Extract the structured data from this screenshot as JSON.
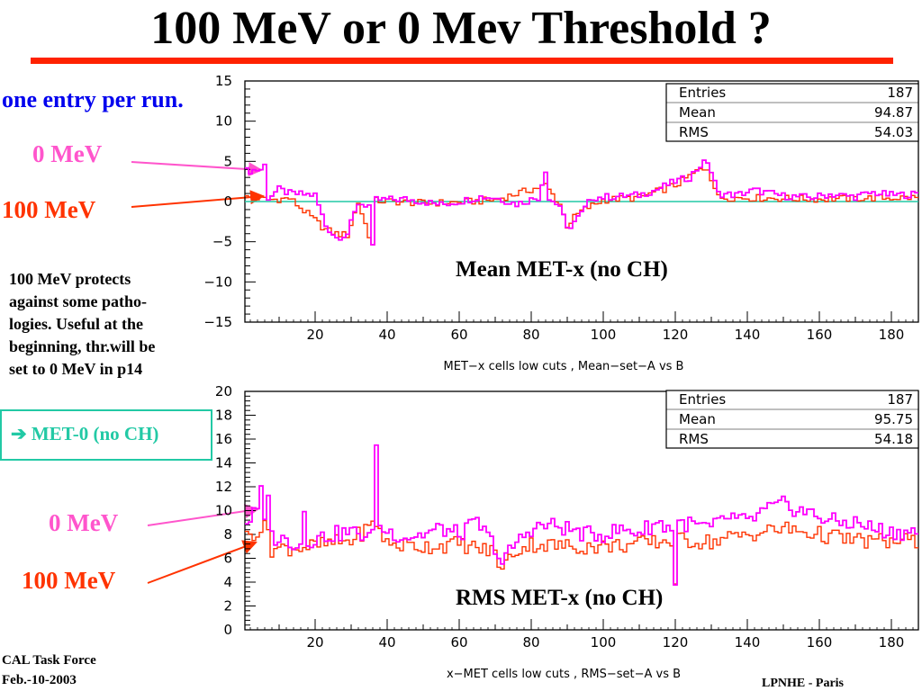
{
  "title": "100 MeV or 0 Mev Threshold ?",
  "annotations": {
    "one_entry": "one entry per run.",
    "label_0mev_top": "0 MeV",
    "label_100mev_top": "100 MeV",
    "label_0mev_bottom": "0 MeV",
    "label_100mev_bottom": "100 MeV",
    "note_lines": [
      "100 MeV protects",
      "against some patho-",
      "logies. Useful at the",
      "beginning, thr.will be",
      "set to 0 MeV in p14"
    ],
    "met0_arrow": "➔",
    "met0_label": "MET-0 (no CH)"
  },
  "footer": {
    "line1": "CAL Task Force",
    "line2": "Feb.-10-2003",
    "right": "LPNHE - Paris"
  },
  "colors": {
    "title_rule": "#ff2200",
    "annotation_red": "#ff3300",
    "annotation_pink": "#ff55cc",
    "annotation_blue": "#0000ee",
    "met0_teal": "#22c9a5",
    "series_0mev": "#ff00ff",
    "series_100mev": "#ff3300",
    "zero_line": "#22c9a5"
  },
  "chart_data": [
    {
      "type": "line",
      "plot_label": "Mean MET-x (no CH)",
      "caption": "MET−x cells low cuts ,  Mean−set−A vs B",
      "xlim": [
        1,
        187
      ],
      "ylim": [
        -15,
        15
      ],
      "x_ticks": [
        20,
        40,
        60,
        80,
        100,
        120,
        140,
        160,
        180
      ],
      "y_ticks": [
        -15,
        -10,
        -5,
        0,
        5,
        10,
        15
      ],
      "zero_line": true,
      "stats": [
        {
          "label": "Entries",
          "value": "187"
        },
        {
          "label": "Mean",
          "value": "94.87"
        },
        {
          "label": "RMS",
          "value": "54.03"
        }
      ],
      "series": [
        {
          "label": "0 MeV",
          "knots": [
            [
              1,
              3.8
            ],
            [
              5,
              4
            ],
            [
              6,
              4.5
            ],
            [
              7,
              0.5
            ],
            [
              10,
              1.5
            ],
            [
              13,
              1
            ],
            [
              20,
              0.8
            ],
            [
              23,
              -3
            ],
            [
              26,
              -4.5
            ],
            [
              29,
              -4
            ],
            [
              32,
              -0.2
            ],
            [
              35,
              -0.5
            ],
            [
              36,
              -5.8
            ],
            [
              37,
              0.2
            ],
            [
              45,
              0.3
            ],
            [
              50,
              0
            ],
            [
              55,
              -0.4
            ],
            [
              60,
              0
            ],
            [
              66,
              0.6
            ],
            [
              70,
              0.5
            ],
            [
              76,
              -0.3
            ],
            [
              82,
              0.5
            ],
            [
              84,
              4
            ],
            [
              85,
              0.3
            ],
            [
              88,
              -0.5
            ],
            [
              90,
              -3.5
            ],
            [
              92,
              -2.5
            ],
            [
              94,
              -1.5
            ],
            [
              97,
              0.5
            ],
            [
              103,
              0.6
            ],
            [
              110,
              0.8
            ],
            [
              115,
              1.5
            ],
            [
              120,
              2.5
            ],
            [
              124,
              3
            ],
            [
              127,
              4.5
            ],
            [
              129,
              5
            ],
            [
              132,
              1
            ],
            [
              137,
              0.8
            ],
            [
              142,
              1.4
            ],
            [
              150,
              0.7
            ],
            [
              158,
              0.5
            ],
            [
              163,
              0.9
            ],
            [
              170,
              0.6
            ],
            [
              175,
              1.1
            ],
            [
              180,
              0.8
            ],
            [
              187,
              0.9
            ]
          ]
        },
        {
          "label": "100 MeV",
          "knots": [
            [
              1,
              0.5
            ],
            [
              5,
              0.4
            ],
            [
              7,
              0.2
            ],
            [
              13,
              0.4
            ],
            [
              23,
              -3.5
            ],
            [
              26,
              -4
            ],
            [
              29,
              -4.2
            ],
            [
              32,
              -0.1
            ],
            [
              36,
              -5.5
            ],
            [
              37,
              0.1
            ],
            [
              50,
              -0.2
            ],
            [
              60,
              -0.1
            ],
            [
              70,
              0.2
            ],
            [
              84,
              2
            ],
            [
              88,
              -0.3
            ],
            [
              90,
              -3
            ],
            [
              92,
              -2
            ],
            [
              94,
              -1.2
            ],
            [
              100,
              0.2
            ],
            [
              110,
              0.5
            ],
            [
              120,
              2
            ],
            [
              127,
              4
            ],
            [
              129,
              4.2
            ],
            [
              132,
              0.5
            ],
            [
              150,
              0.4
            ],
            [
              160,
              0.3
            ],
            [
              170,
              0.4
            ],
            [
              187,
              0.5
            ]
          ]
        }
      ]
    },
    {
      "type": "line",
      "plot_label": "RMS MET-x (no CH)",
      "caption": "x−MET cells low cuts ,  RMS−set−A vs B",
      "xlim": [
        1,
        187
      ],
      "ylim": [
        0,
        20
      ],
      "x_ticks": [
        20,
        40,
        60,
        80,
        100,
        120,
        140,
        160,
        180
      ],
      "y_ticks": [
        0,
        2,
        4,
        6,
        8,
        10,
        12,
        14,
        16,
        18,
        20
      ],
      "zero_line": false,
      "stats": [
        {
          "label": "Entries",
          "value": "187"
        },
        {
          "label": "Mean",
          "value": "95.75"
        },
        {
          "label": "RMS",
          "value": "54.18"
        }
      ],
      "series": [
        {
          "label": "0 MeV",
          "knots": [
            [
              1,
              9
            ],
            [
              4,
              10
            ],
            [
              5,
              11.5
            ],
            [
              6,
              9
            ],
            [
              7,
              11.8
            ],
            [
              8,
              7.8
            ],
            [
              12,
              7.5
            ],
            [
              16,
              7.2
            ],
            [
              17,
              10
            ],
            [
              18,
              7.5
            ],
            [
              25,
              8
            ],
            [
              30,
              8.2
            ],
            [
              36,
              7.8
            ],
            [
              37,
              16
            ],
            [
              38,
              8.5
            ],
            [
              45,
              7.8
            ],
            [
              50,
              8
            ],
            [
              55,
              8.5
            ],
            [
              60,
              8
            ],
            [
              65,
              9
            ],
            [
              70,
              7
            ],
            [
              72,
              5.5
            ],
            [
              75,
              7
            ],
            [
              80,
              8.5
            ],
            [
              85,
              8.8
            ],
            [
              90,
              8.5
            ],
            [
              95,
              8
            ],
            [
              100,
              8
            ],
            [
              105,
              8.4
            ],
            [
              110,
              8.2
            ],
            [
              115,
              9
            ],
            [
              119,
              8.5
            ],
            [
              120,
              4
            ],
            [
              121,
              9
            ],
            [
              125,
              8.8
            ],
            [
              130,
              8.5
            ],
            [
              135,
              9.5
            ],
            [
              140,
              9
            ],
            [
              145,
              10
            ],
            [
              150,
              10.5
            ],
            [
              155,
              10
            ],
            [
              160,
              9.5
            ],
            [
              165,
              9
            ],
            [
              170,
              9
            ],
            [
              175,
              8.5
            ],
            [
              180,
              8.2
            ],
            [
              187,
              8.2
            ]
          ]
        },
        {
          "label": "100 MeV",
          "knots": [
            [
              1,
              7.8
            ],
            [
              5,
              8.5
            ],
            [
              7,
              8.5
            ],
            [
              8,
              6.8
            ],
            [
              20,
              7
            ],
            [
              30,
              7.5
            ],
            [
              37,
              9
            ],
            [
              40,
              7.2
            ],
            [
              50,
              7
            ],
            [
              60,
              7.2
            ],
            [
              70,
              6.5
            ],
            [
              72,
              5
            ],
            [
              75,
              6.5
            ],
            [
              80,
              7.2
            ],
            [
              90,
              7
            ],
            [
              100,
              7
            ],
            [
              110,
              7.2
            ],
            [
              119,
              7.5
            ],
            [
              120,
              4
            ],
            [
              121,
              7.5
            ],
            [
              130,
              7.4
            ],
            [
              140,
              8
            ],
            [
              150,
              8.5
            ],
            [
              160,
              8
            ],
            [
              170,
              7.5
            ],
            [
              180,
              7.4
            ],
            [
              187,
              7.4
            ]
          ]
        }
      ]
    }
  ]
}
